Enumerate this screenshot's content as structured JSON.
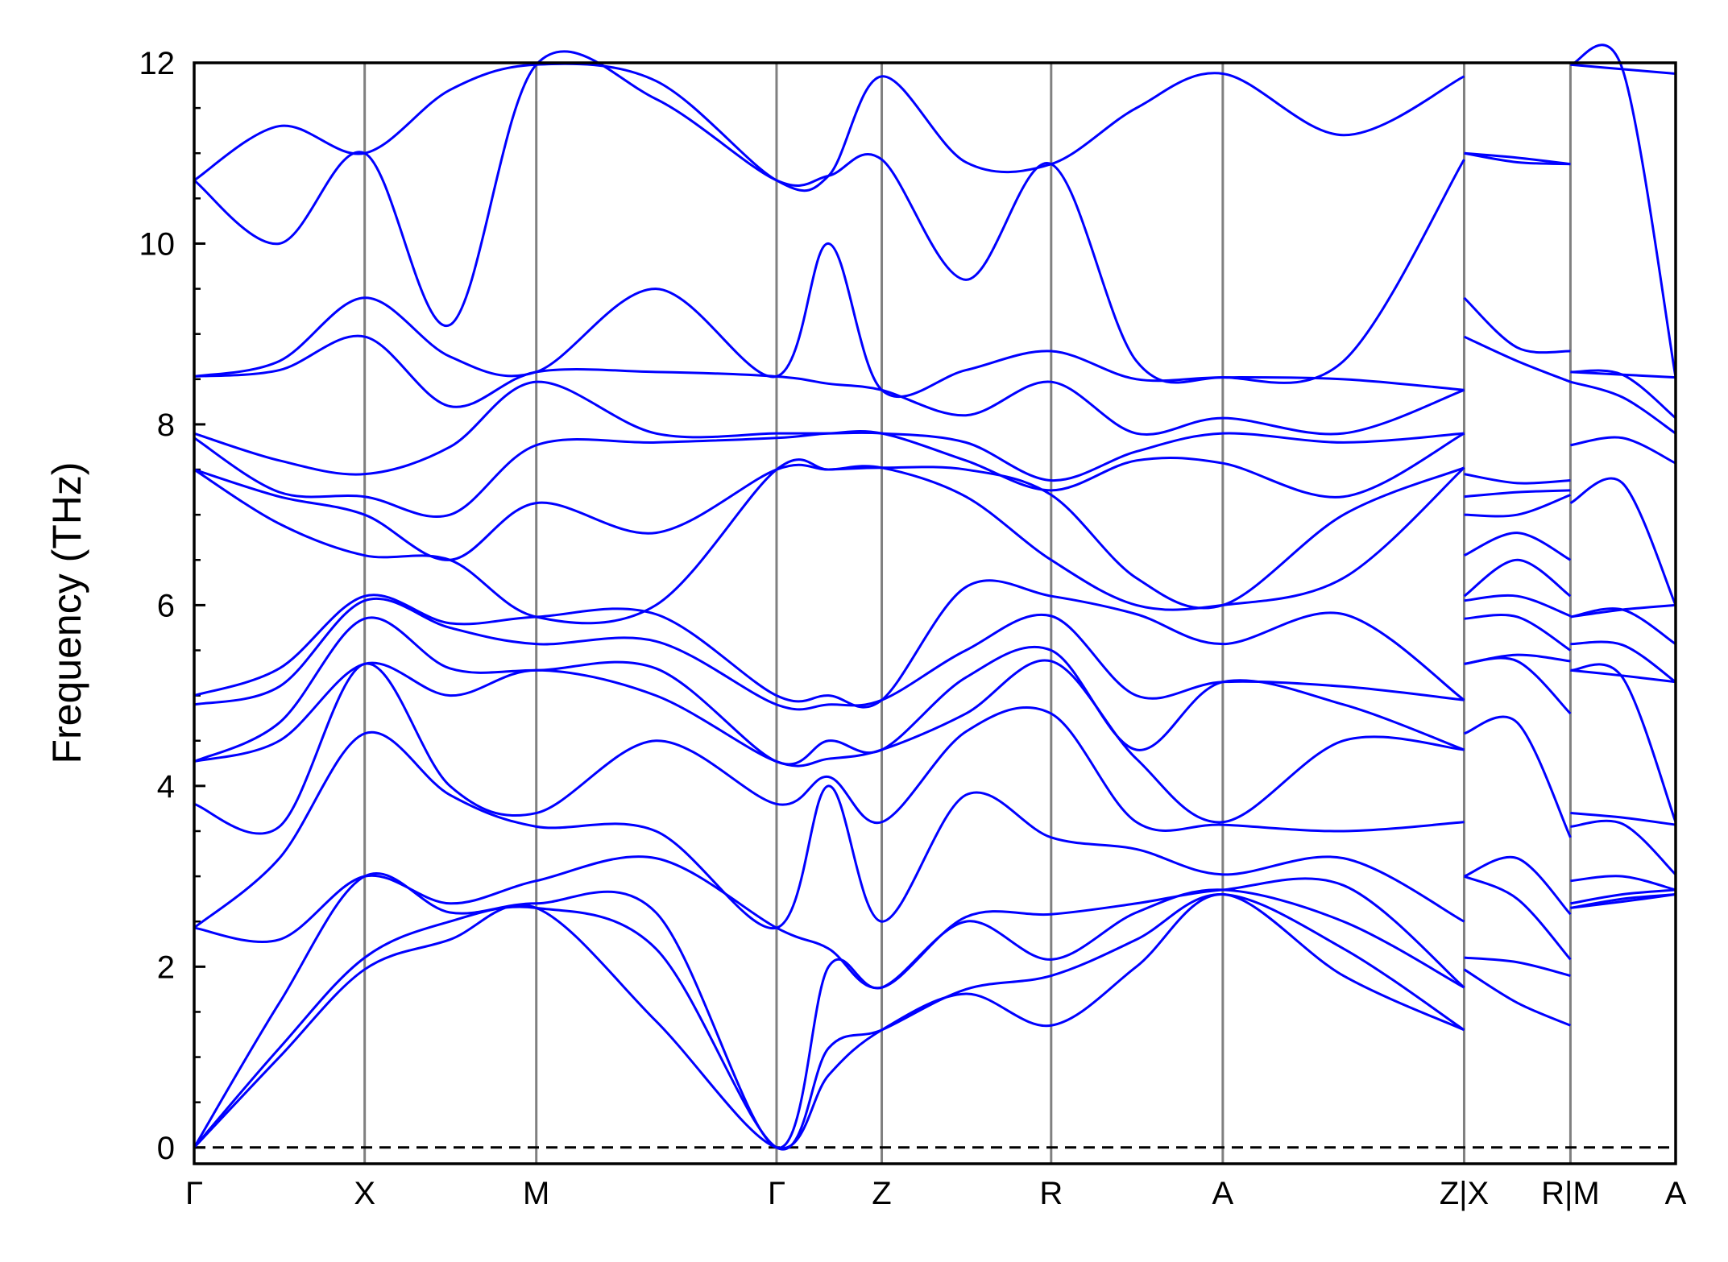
{
  "chart_data": {
    "type": "line",
    "ylabel": "Frequency (THz)",
    "color": "#0000ff",
    "line_style": "smooth",
    "x": [
      0,
      0.77,
      1.54,
      2.31,
      3.09,
      4.17,
      5.26,
      5.73,
      6.21,
      6.97,
      7.74,
      8.51,
      9.29,
      10.38,
      11.47,
      null,
      11.47,
      11.95,
      12.43,
      null,
      12.43,
      12.9,
      13.38
    ],
    "xlim": [
      0,
      13.38
    ],
    "xticks": [
      {
        "value": 0,
        "label": "Γ"
      },
      {
        "value": 1.54,
        "label": "X"
      },
      {
        "value": 3.09,
        "label": "M"
      },
      {
        "value": 5.26,
        "label": "Γ"
      },
      {
        "value": 6.21,
        "label": "Z"
      },
      {
        "value": 7.74,
        "label": "R"
      },
      {
        "value": 9.29,
        "label": "A"
      },
      {
        "value": 11.47,
        "label": "Z|X"
      },
      {
        "value": 12.43,
        "label": "R|M"
      },
      {
        "value": 13.38,
        "label": "A"
      }
    ],
    "ylim": [
      -0.18,
      12
    ],
    "yticks": [
      0,
      2,
      4,
      6,
      8,
      10,
      12
    ],
    "yminor_ticks": [
      0.5,
      1,
      1.5,
      2.5,
      3,
      3.5,
      4.5,
      5,
      5.5,
      6.5,
      7,
      7.5,
      8.5,
      9,
      9.5,
      10.5,
      11,
      11.5
    ],
    "vgrid": true,
    "reference_line": 0,
    "series": [
      {
        "values": [
          0,
          1.0,
          1.97,
          2.3,
          2.65,
          1.4,
          0,
          0.8,
          1.3,
          1.7,
          1.35,
          2.0,
          2.8,
          1.9,
          1.3,
          null,
          1.97,
          1.6,
          1.35,
          null,
          2.65,
          2.72,
          2.8
        ]
      },
      {
        "values": [
          0,
          1.1,
          2.1,
          2.5,
          2.65,
          2.2,
          0,
          1.1,
          1.3,
          1.75,
          1.9,
          2.3,
          2.8,
          2.2,
          1.3,
          null,
          2.1,
          2.05,
          1.9,
          null,
          2.65,
          2.75,
          2.8
        ]
      },
      {
        "values": [
          0,
          1.6,
          3.0,
          2.6,
          2.7,
          2.6,
          0,
          2.0,
          1.77,
          2.5,
          2.08,
          2.6,
          2.85,
          2.5,
          1.77,
          null,
          3.0,
          2.75,
          2.08,
          null,
          2.7,
          2.8,
          2.85
        ]
      },
      {
        "values": [
          2.43,
          2.3,
          3.0,
          2.7,
          2.95,
          3.2,
          2.43,
          2.2,
          1.77,
          2.55,
          2.58,
          2.7,
          2.85,
          2.9,
          1.77,
          null,
          3.0,
          3.2,
          2.58,
          null,
          2.95,
          3.0,
          2.85
        ]
      },
      {
        "values": [
          2.43,
          3.2,
          4.58,
          3.9,
          3.55,
          3.5,
          2.43,
          4.0,
          2.5,
          3.9,
          3.43,
          3.3,
          3.02,
          3.2,
          2.5,
          null,
          4.58,
          4.7,
          3.43,
          null,
          3.55,
          3.58,
          3.02
        ]
      },
      {
        "values": [
          3.8,
          3.55,
          5.35,
          4.0,
          3.7,
          4.5,
          3.8,
          4.1,
          3.6,
          4.6,
          4.8,
          3.6,
          3.57,
          3.5,
          3.6,
          null,
          5.35,
          5.38,
          4.8,
          null,
          3.7,
          3.65,
          3.57
        ]
      },
      {
        "values": [
          4.27,
          4.5,
          5.35,
          5.0,
          5.28,
          5.0,
          4.27,
          4.3,
          4.4,
          4.8,
          5.38,
          4.3,
          3.6,
          4.5,
          4.4,
          null,
          5.35,
          5.45,
          5.38,
          null,
          5.28,
          5.2,
          3.6
        ]
      },
      {
        "values": [
          4.27,
          4.7,
          5.85,
          5.3,
          5.28,
          5.3,
          4.27,
          4.5,
          4.4,
          5.2,
          5.5,
          4.4,
          5.15,
          4.9,
          4.4,
          null,
          5.85,
          5.87,
          5.5,
          null,
          5.28,
          5.22,
          5.15
        ]
      },
      {
        "values": [
          4.9,
          5.1,
          6.05,
          5.75,
          5.57,
          5.6,
          4.9,
          4.9,
          4.95,
          5.5,
          5.88,
          5.0,
          5.15,
          5.1,
          4.95,
          null,
          6.05,
          6.1,
          5.88,
          null,
          5.57,
          5.56,
          5.15
        ]
      },
      {
        "values": [
          5.0,
          5.3,
          6.1,
          5.8,
          5.87,
          5.9,
          5.0,
          5.0,
          4.95,
          6.2,
          6.1,
          5.9,
          5.57,
          5.9,
          4.95,
          null,
          6.1,
          6.5,
          6.1,
          null,
          5.87,
          5.95,
          5.57
        ]
      },
      {
        "values": [
          7.5,
          6.9,
          6.55,
          6.5,
          5.87,
          6.0,
          7.5,
          7.5,
          7.52,
          7.2,
          6.5,
          6.0,
          6.0,
          6.3,
          7.52,
          null,
          6.55,
          6.8,
          6.5,
          null,
          5.87,
          5.95,
          6.0
        ]
      },
      {
        "values": [
          7.5,
          7.2,
          7.0,
          6.5,
          7.13,
          6.8,
          7.5,
          7.5,
          7.52,
          7.5,
          7.22,
          6.3,
          6.0,
          7.0,
          7.52,
          null,
          7.0,
          7.0,
          7.22,
          null,
          7.13,
          7.35,
          6.0
        ]
      },
      {
        "values": [
          7.85,
          7.25,
          7.2,
          7.0,
          7.77,
          7.8,
          7.85,
          7.9,
          7.9,
          7.6,
          7.27,
          7.6,
          7.57,
          7.2,
          7.9,
          null,
          7.2,
          7.25,
          7.27,
          null,
          7.77,
          7.85,
          7.57
        ]
      },
      {
        "values": [
          7.9,
          7.6,
          7.45,
          7.75,
          8.47,
          7.9,
          7.9,
          7.9,
          7.9,
          7.8,
          7.38,
          7.7,
          7.9,
          7.8,
          7.9,
          null,
          7.45,
          7.35,
          7.38,
          null,
          8.47,
          8.3,
          7.9
        ]
      },
      {
        "values": [
          8.53,
          8.6,
          8.97,
          8.2,
          8.58,
          8.58,
          8.53,
          8.45,
          8.38,
          8.1,
          8.47,
          7.9,
          8.07,
          7.9,
          8.38,
          null,
          8.97,
          8.7,
          8.47,
          null,
          8.58,
          8.55,
          8.07
        ]
      },
      {
        "values": [
          8.53,
          8.7,
          9.4,
          8.75,
          8.58,
          9.5,
          8.53,
          10.0,
          8.38,
          8.6,
          8.81,
          8.5,
          8.52,
          8.5,
          8.38,
          null,
          9.4,
          8.85,
          8.81,
          null,
          8.58,
          8.55,
          8.52
        ]
      },
      {
        "values": [
          10.7,
          10.0,
          11.0,
          9.1,
          11.98,
          11.6,
          10.7,
          10.75,
          10.93,
          9.6,
          10.88,
          8.7,
          8.52,
          8.7,
          10.93,
          null,
          11.0,
          10.9,
          10.88,
          null,
          11.98,
          11.93,
          8.52
        ]
      },
      {
        "values": [
          10.7,
          11.3,
          11.0,
          11.7,
          11.98,
          11.8,
          10.7,
          10.75,
          11.85,
          10.9,
          10.88,
          11.5,
          11.88,
          11.2,
          11.85,
          null,
          11.0,
          10.95,
          10.88,
          null,
          11.98,
          11.93,
          11.88
        ]
      }
    ]
  }
}
